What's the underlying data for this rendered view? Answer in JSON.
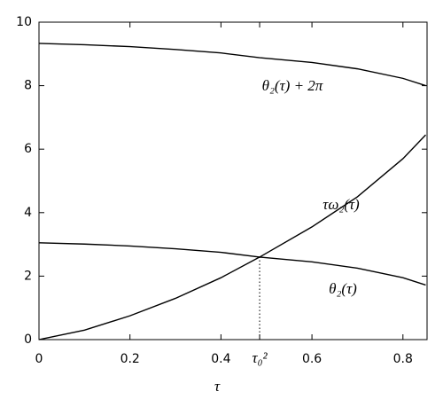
{
  "chart_data": {
    "type": "line",
    "x_label": "τ",
    "x": [
      0,
      0.1,
      0.2,
      0.3,
      0.4,
      0.485,
      0.6,
      0.7,
      0.8,
      0.85
    ],
    "series": [
      {
        "name": "θ₂(τ) + 2π",
        "color": "#000000",
        "values": [
          9.33,
          9.29,
          9.23,
          9.14,
          9.03,
          8.88,
          8.73,
          8.53,
          8.23,
          8.0
        ]
      },
      {
        "name": "τω₂(τ)",
        "color": "#000000",
        "values": [
          0,
          0.3,
          0.75,
          1.3,
          1.95,
          2.6,
          3.55,
          4.5,
          5.7,
          6.45
        ]
      },
      {
        "name": "θ₂(τ)",
        "color": "#000000",
        "values": [
          3.05,
          3.01,
          2.95,
          2.86,
          2.75,
          2.6,
          2.45,
          2.25,
          1.95,
          1.72
        ]
      }
    ],
    "xlim": [
      0,
      0.853
    ],
    "ylim": [
      0,
      10
    ],
    "xticks": [
      0,
      0.2,
      0.4,
      {
        "value": 0.485,
        "label": "τ₀²"
      },
      0.6,
      0.8
    ],
    "yticks": [
      0,
      2,
      4,
      6,
      8,
      10
    ]
  }
}
